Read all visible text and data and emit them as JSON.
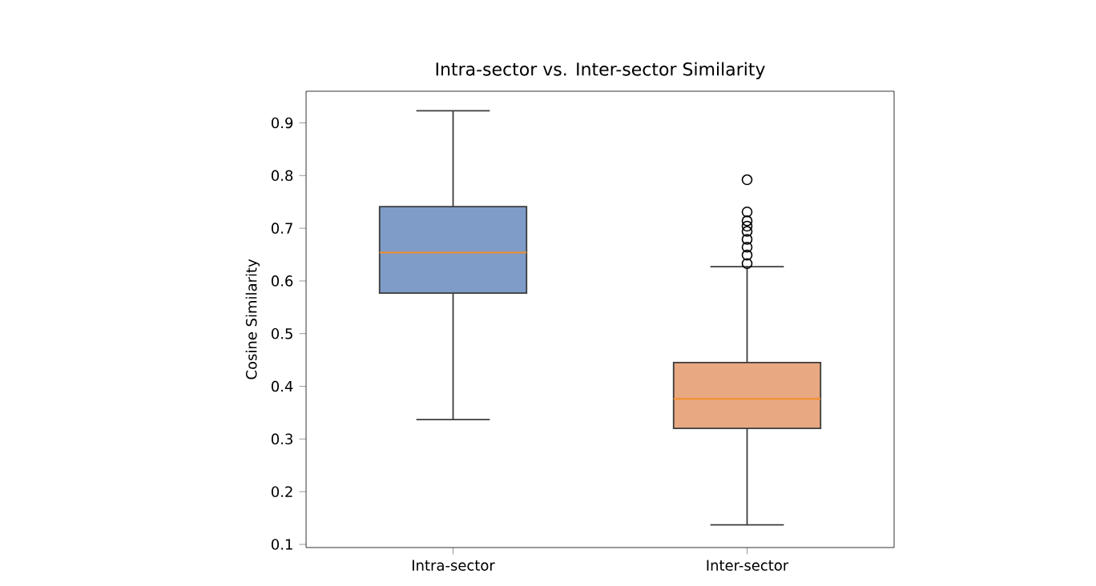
{
  "chart_data": {
    "type": "box",
    "title": "Intra-sector vs. Inter-sector Similarity",
    "ylabel": "Cosine Similarity",
    "categories": [
      "Intra-sector",
      "Inter-sector"
    ],
    "colors": [
      "#7f9cc8",
      "#e8a882"
    ],
    "boxes": [
      {
        "low": 0.337,
        "q1": 0.577,
        "median": 0.654,
        "q3": 0.741,
        "high": 0.923
      },
      {
        "low": 0.137,
        "q1": 0.32,
        "median": 0.376,
        "q3": 0.445,
        "high": 0.627,
        "outliers": [
          0.792,
          0.731,
          0.714,
          0.704,
          0.694,
          0.679,
          0.664,
          0.649,
          0.633
        ]
      }
    ],
    "ylim": [
      0.094,
      0.96
    ],
    "yticks": [
      0.1,
      0.2,
      0.3,
      0.4,
      0.5,
      0.6,
      0.7,
      0.8,
      0.9
    ],
    "grid": false,
    "marker": "circle"
  }
}
